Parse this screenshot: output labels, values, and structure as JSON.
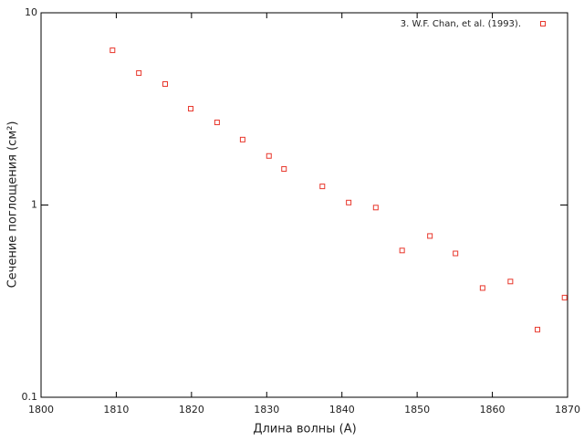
{
  "chart_data": {
    "type": "scatter",
    "xlabel": "Длина волны (A)",
    "ylabel": "Сечение поглощения (см²)",
    "log_y": true,
    "series": [
      {
        "name": "3. W.F. Chan, et al. (1993).",
        "color": "#e8372c",
        "x": [
          1809.5,
          1813.0,
          1816.5,
          1819.9,
          1823.4,
          1826.8,
          1830.3,
          1832.3,
          1837.4,
          1840.9,
          1844.5,
          1848.0,
          1851.7,
          1855.1,
          1858.7,
          1862.4,
          1866.0,
          1869.6
        ],
        "values": [
          6.38,
          4.86,
          4.26,
          3.17,
          2.69,
          2.19,
          1.8,
          1.54,
          1.25,
          1.03,
          0.97,
          0.58,
          0.69,
          0.56,
          0.37,
          0.4,
          0.225,
          0.33
        ]
      }
    ],
    "xlim": [
      1800,
      1870
    ],
    "xticks": [
      1800,
      1810,
      1820,
      1830,
      1840,
      1850,
      1860,
      1870
    ],
    "ylim": [
      0.1,
      10
    ],
    "yticks": [
      0.1,
      1,
      10
    ],
    "legend": "top-right"
  }
}
